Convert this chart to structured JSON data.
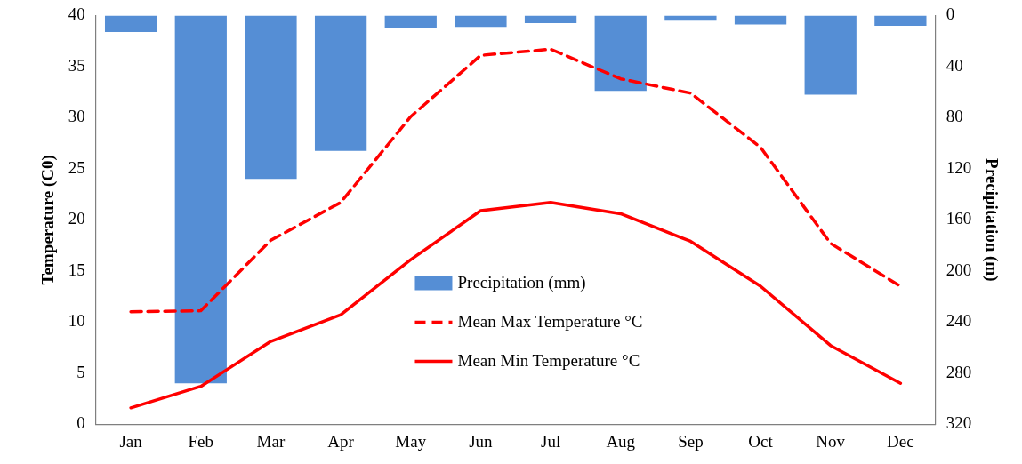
{
  "chart_data": {
    "type": "bar",
    "categories": [
      "Jan",
      "Feb",
      "Mar",
      "Apr",
      "May",
      "Jun",
      "Jul",
      "Aug",
      "Sep",
      "Oct",
      "Nov",
      "Dec"
    ],
    "ylabel": "Temperature (C0)",
    "y2label": "Precipitation (m)",
    "ylim": [
      0,
      40
    ],
    "yticks": [
      0,
      5,
      10,
      15,
      20,
      25,
      30,
      35,
      40
    ],
    "y2lim": [
      320,
      0
    ],
    "y2ticks": [
      0,
      40,
      80,
      120,
      160,
      200,
      240,
      280,
      320
    ],
    "grid": false,
    "legend": "bottom center",
    "marker": "none",
    "series": [
      {
        "name": "Precipitation (mm)",
        "axis": "y2",
        "color": "#558ed5",
        "values": [
          13,
          288,
          128,
          106,
          10,
          9,
          6,
          59,
          4,
          7,
          62,
          8
        ]
      },
      {
        "name": "Mean Max Temperature °C",
        "type": "line",
        "line_style": "dashed",
        "color": "#ff0000",
        "values": [
          11.0,
          11.1,
          18.0,
          21.7,
          30.1,
          36.1,
          36.7,
          33.8,
          32.4,
          27.1,
          17.7,
          13.5
        ]
      },
      {
        "name": "Mean Min Temperature °C",
        "type": "line",
        "line_style": "solid",
        "color": "#ff0000",
        "values": [
          1.6,
          3.7,
          8.1,
          10.7,
          16.1,
          20.9,
          21.7,
          20.6,
          17.9,
          13.5,
          7.7,
          4.0
        ]
      }
    ]
  }
}
